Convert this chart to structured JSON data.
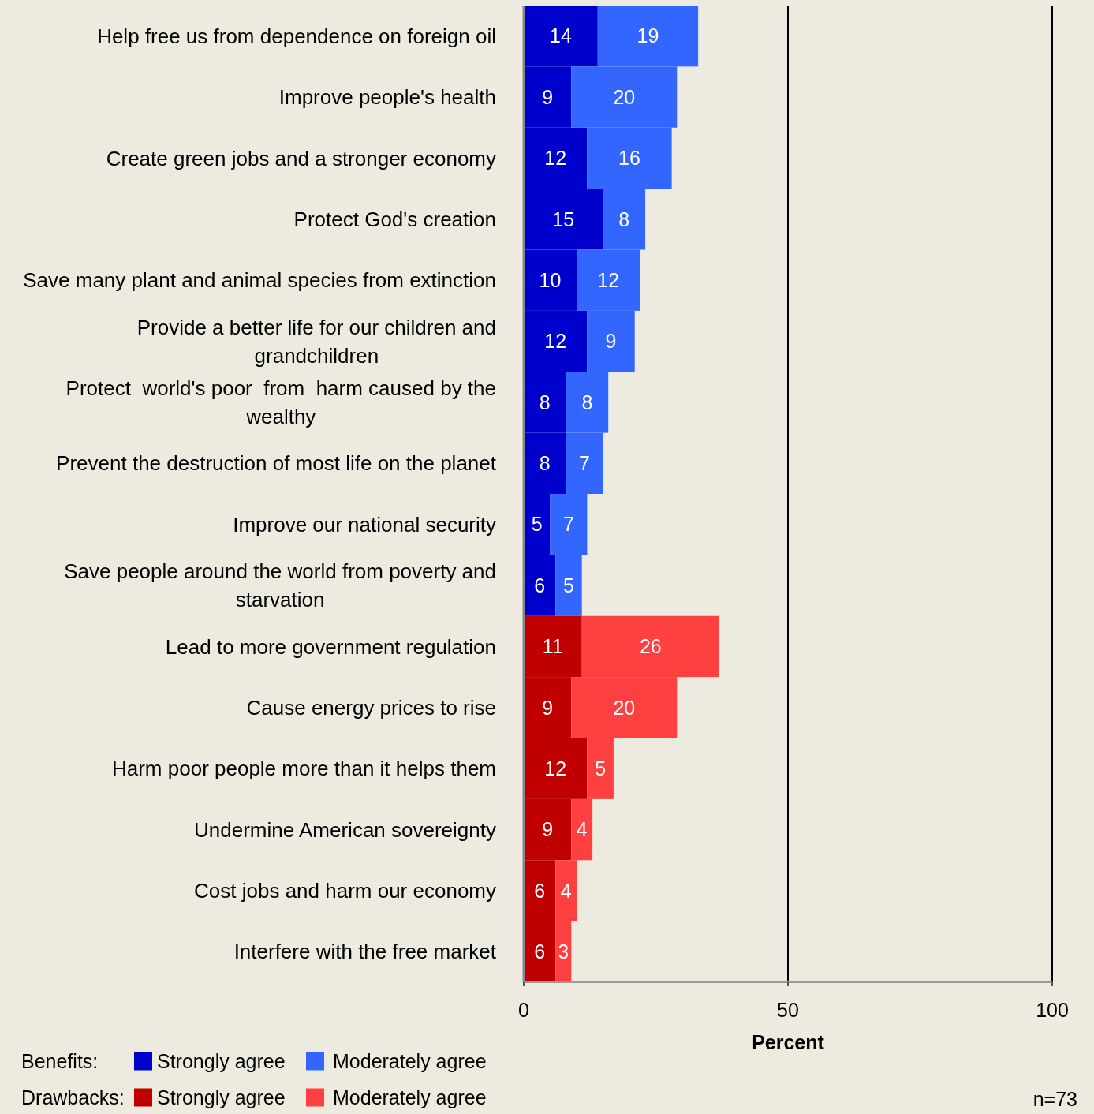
{
  "chart_data": {
    "type": "bar",
    "orientation": "horizontal",
    "stacked": true,
    "categories": [
      "Help free us from dependence on foreign oil",
      "Improve people's health",
      "Create green jobs and a stronger economy",
      "Protect God's creation",
      "Save many plant and animal species from extinction",
      "Provide a better life for our children and grandchildren",
      "Protect  world's poor  from  harm caused by the wealthy",
      "Prevent the destruction of most life on the planet",
      "Improve our national security",
      "Save people around the world from poverty and starvation",
      "Lead to more government regulation",
      "Cause energy prices to rise",
      "Harm poor people more than it helps them",
      "Undermine American sovereignty",
      "Cost jobs and harm our economy",
      "Interfere with the free market"
    ],
    "series": [
      {
        "name": "Strongly agree",
        "color": "#0000cc",
        "values": [
          14,
          9,
          12,
          15,
          10,
          12,
          8,
          8,
          5,
          6,
          null,
          null,
          null,
          null,
          null,
          null
        ]
      },
      {
        "name": "Moderately agree",
        "color": "#3366ff",
        "values": [
          19,
          20,
          16,
          8,
          12,
          9,
          8,
          7,
          7,
          5,
          null,
          null,
          null,
          null,
          null,
          null
        ]
      },
      {
        "name": "Strongly agree",
        "color": "#c00000",
        "values": [
          null,
          null,
          null,
          null,
          null,
          null,
          null,
          null,
          null,
          null,
          11,
          9,
          12,
          9,
          6,
          6
        ]
      },
      {
        "name": "Moderately agree",
        "color": "#ff4040",
        "values": [
          null,
          null,
          null,
          null,
          null,
          null,
          null,
          null,
          null,
          null,
          26,
          20,
          5,
          4,
          4,
          3
        ]
      }
    ],
    "xlim": [
      0,
      100
    ],
    "xticks": [
      0,
      50,
      100
    ],
    "xlabel": "Percent",
    "grid": "x",
    "legend": "bottom",
    "data_labels": true,
    "annotations": [
      "Benefits:",
      "Drawbacks:",
      "n=73"
    ]
  }
}
